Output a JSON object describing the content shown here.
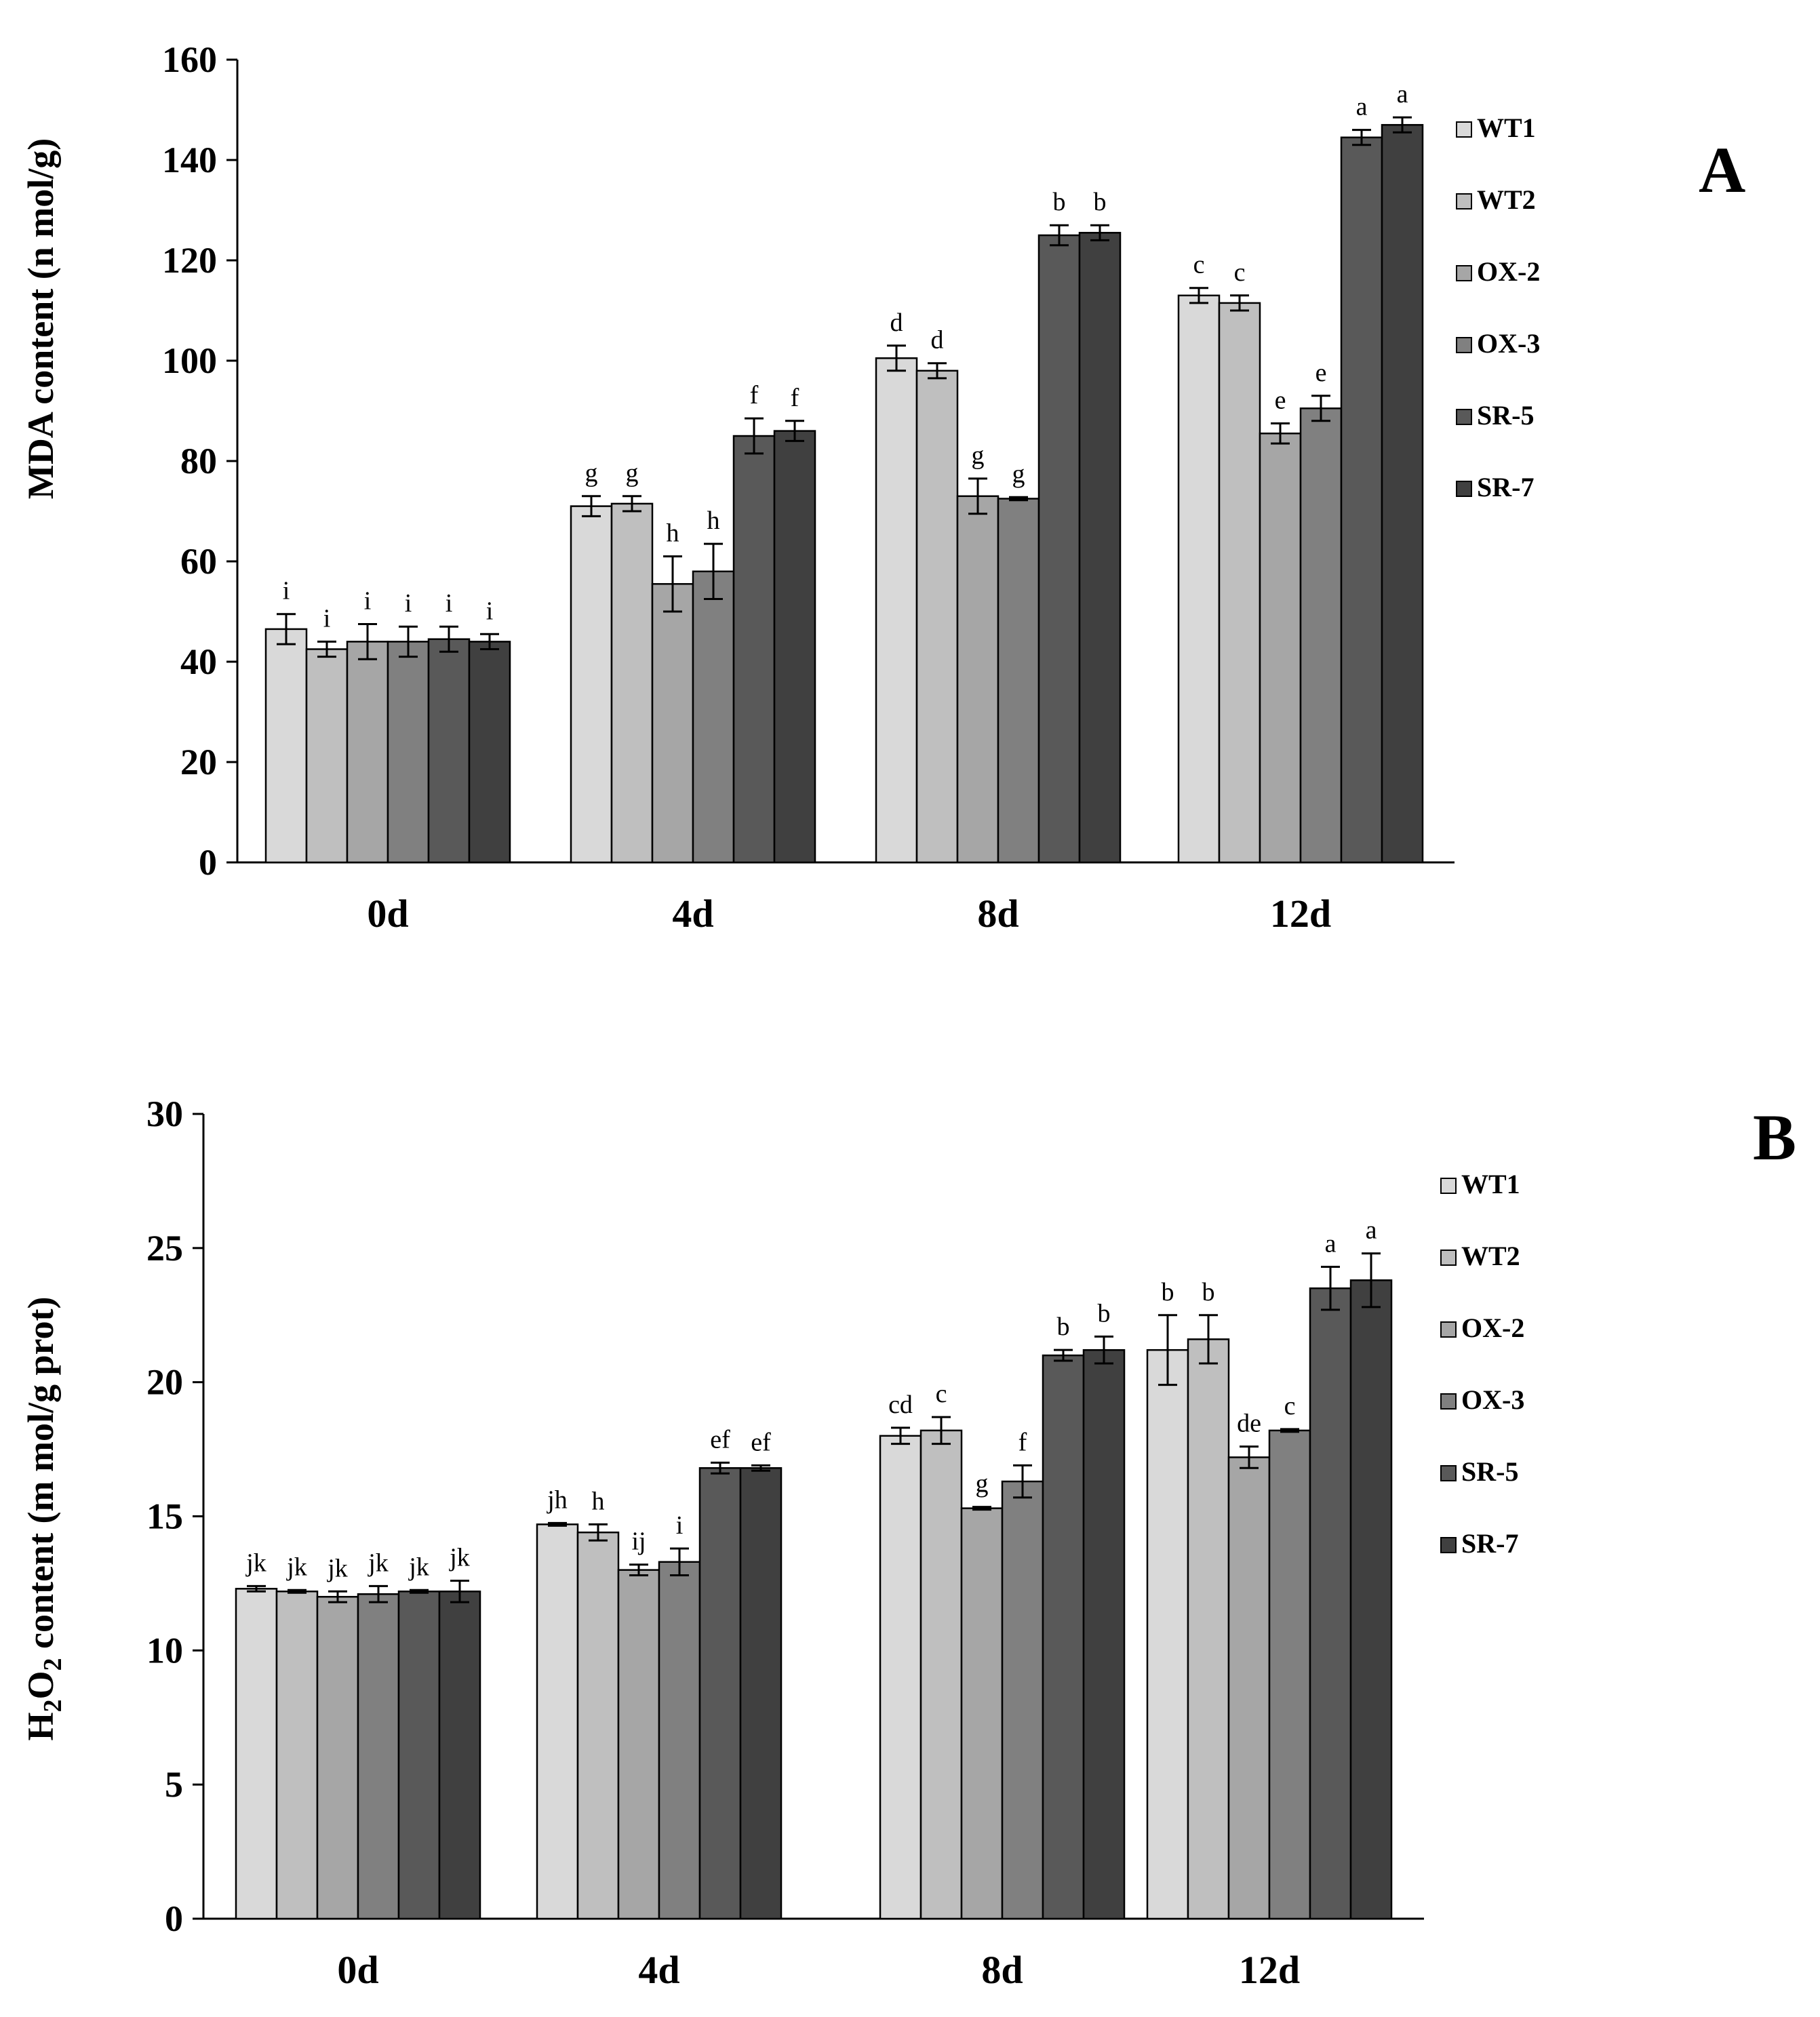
{
  "chart_data": [
    {
      "type": "bar",
      "panel": "A",
      "ylabel": "MDA content (n mol/g)",
      "ylim": [
        0,
        160
      ],
      "yticks": [
        0,
        20,
        40,
        60,
        80,
        100,
        120,
        140,
        160
      ],
      "categories": [
        "0d",
        "4d",
        "8d",
        "12d"
      ],
      "legend_position": "right",
      "series": [
        {
          "name": "WT1",
          "color": "#d9d9d9",
          "values": [
            46.5,
            71,
            100.5,
            113
          ],
          "errors": [
            3,
            2,
            2.5,
            1.5
          ],
          "labels": [
            "i",
            "g",
            "d",
            "c"
          ]
        },
        {
          "name": "WT2",
          "color": "#bfbfbf",
          "values": [
            42.5,
            71.5,
            98,
            111.5
          ],
          "errors": [
            1.5,
            1.5,
            1.5,
            1.5
          ],
          "labels": [
            "i",
            "g",
            "d",
            "c"
          ]
        },
        {
          "name": "OX-2",
          "color": "#a6a6a6",
          "values": [
            44,
            55.5,
            73,
            85.5
          ],
          "errors": [
            3.5,
            5.5,
            3.5,
            2
          ],
          "labels": [
            "i",
            "h",
            "g",
            "e"
          ]
        },
        {
          "name": "OX-3",
          "color": "#808080",
          "values": [
            44,
            58,
            72.5,
            90.5
          ],
          "errors": [
            3,
            5.5,
            0.3,
            2.5
          ],
          "labels": [
            "i",
            "h",
            "g",
            "e"
          ]
        },
        {
          "name": "SR-5",
          "color": "#595959",
          "values": [
            44.5,
            85,
            125,
            144.5
          ],
          "errors": [
            2.5,
            3.5,
            2,
            1.5
          ],
          "labels": [
            "i",
            "f",
            "b",
            "a"
          ]
        },
        {
          "name": "SR-7",
          "color": "#404040",
          "values": [
            44,
            86,
            125.5,
            147
          ],
          "errors": [
            1.5,
            2,
            1.5,
            1.5
          ],
          "labels": [
            "i",
            "f",
            "b",
            "a"
          ]
        }
      ]
    },
    {
      "type": "bar",
      "panel": "B",
      "ylabel": "H2O2 content (m mol/g prot)",
      "ylabel_parts": {
        "pre": "H",
        "sub1": "2",
        "mid": "O",
        "sub2": "2",
        "post": " content (m mol/g prot)"
      },
      "ylim": [
        0,
        30
      ],
      "yticks": [
        0,
        5,
        10,
        15,
        20,
        25,
        30
      ],
      "categories": [
        "0d",
        "4d",
        "8d",
        "12d"
      ],
      "legend_position": "right",
      "series": [
        {
          "name": "WT1",
          "color": "#d9d9d9",
          "values": [
            12.3,
            14.7,
            18,
            21.2
          ],
          "errors": [
            0.1,
            0.05,
            0.3,
            1.3
          ],
          "labels": [
            "jk",
            "jh",
            "cd",
            "b"
          ]
        },
        {
          "name": "WT2",
          "color": "#bfbfbf",
          "values": [
            12.2,
            14.4,
            18.2,
            21.6
          ],
          "errors": [
            0.05,
            0.3,
            0.5,
            0.9
          ],
          "labels": [
            "jk",
            "h",
            "c",
            "b"
          ]
        },
        {
          "name": "OX-2",
          "color": "#a6a6a6",
          "values": [
            12,
            13,
            15.3,
            17.2
          ],
          "errors": [
            0.2,
            0.2,
            0.05,
            0.4
          ],
          "labels": [
            "jk",
            "ij",
            "g",
            "de"
          ]
        },
        {
          "name": "OX-3",
          "color": "#808080",
          "values": [
            12.1,
            13.3,
            16.3,
            18.2
          ],
          "errors": [
            0.3,
            0.5,
            0.6,
            0.05
          ],
          "labels": [
            "jk",
            "i",
            "f",
            "c"
          ]
        },
        {
          "name": "SR-5",
          "color": "#595959",
          "values": [
            12.2,
            16.8,
            21,
            23.5
          ],
          "errors": [
            0.05,
            0.2,
            0.2,
            0.8
          ],
          "labels": [
            "jk",
            "ef",
            "b",
            "a"
          ]
        },
        {
          "name": "SR-7",
          "color": "#404040",
          "values": [
            12.2,
            16.8,
            21.2,
            23.8
          ],
          "errors": [
            0.4,
            0.1,
            0.5,
            1
          ],
          "labels": [
            "jk",
            "ef",
            "b",
            "a"
          ]
        }
      ]
    }
  ]
}
